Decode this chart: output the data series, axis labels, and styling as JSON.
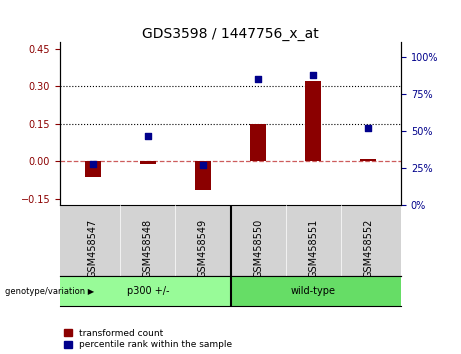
{
  "title": "GDS3598 / 1447756_x_at",
  "samples": [
    "GSM458547",
    "GSM458548",
    "GSM458549",
    "GSM458550",
    "GSM458551",
    "GSM458552"
  ],
  "transformed_count": [
    -0.06,
    -0.01,
    -0.115,
    0.15,
    0.32,
    0.01
  ],
  "percentile_rank": [
    28,
    47,
    27,
    85,
    88,
    52
  ],
  "group_bg_color": "#90EE90",
  "group2_bg_color": "#66DD66",
  "sample_bg_color": "#d3d3d3",
  "bar_color": "#8B0000",
  "dot_color": "#00008B",
  "dashed_line_color": "#CD5C5C",
  "left_ylim": [
    -0.175,
    0.475
  ],
  "right_ylim": [
    0,
    110
  ],
  "left_yticks": [
    -0.15,
    0.0,
    0.15,
    0.3,
    0.45
  ],
  "right_yticks": [
    0,
    25,
    50,
    75,
    100
  ],
  "hlines": [
    0.15,
    0.3
  ],
  "title_fontsize": 10,
  "tick_fontsize": 7,
  "label_fontsize": 7,
  "group_labels": [
    "p300 +/-",
    "wild-type"
  ],
  "group_split": 2.5,
  "legend_items": [
    "transformed count",
    "percentile rank within the sample"
  ],
  "genotype_label": "genotype/variation ▶"
}
